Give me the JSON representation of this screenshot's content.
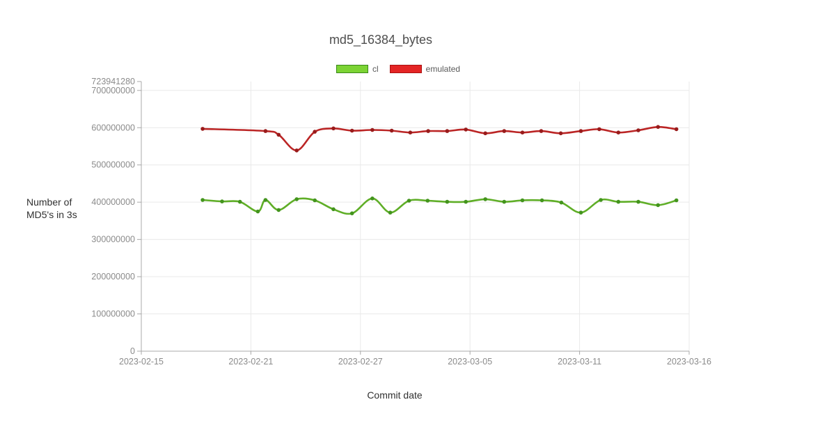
{
  "chart_data": {
    "type": "line",
    "title": "md5_16384_bytes",
    "xlabel": "Commit date",
    "ylabel": "Number of MD5's in 3s",
    "ylabel_lines": [
      "Number of",
      "MD5's in 3s"
    ],
    "x_epoch": "2023-02-15",
    "x_unit_days_after_epoch": true,
    "ylim": [
      0,
      723941280
    ],
    "grid": true,
    "legend_position": "top",
    "colors": {
      "grid": "#e9e9e9",
      "axis": "#a8a8a8",
      "tick_label": "#8b8b8b",
      "title": "#4e4e4e",
      "axis_title": "#303030"
    },
    "y_ticks": [
      0,
      100000000,
      200000000,
      300000000,
      400000000,
      500000000,
      600000000,
      700000000,
      723941280
    ],
    "x_ticks": [
      {
        "label": "2023-02-15",
        "day": 0
      },
      {
        "label": "2023-02-21",
        "day": 6
      },
      {
        "label": "2023-02-27",
        "day": 12
      },
      {
        "label": "2023-03-05",
        "day": 18
      },
      {
        "label": "2023-03-11",
        "day": 24
      },
      {
        "label": "2023-03-16",
        "day": 29
      }
    ],
    "series": [
      {
        "name": "cl",
        "color": "#5fae27",
        "marker_color": "#43941d",
        "legend_fill": "#7cd334",
        "legend_border": "#39871a",
        "points": [
          [
            3.36,
            406000000
          ],
          [
            4.42,
            402000000
          ],
          [
            5.4,
            401000000
          ],
          [
            6.38,
            375000000
          ],
          [
            6.8,
            406000000
          ],
          [
            7.52,
            379000000
          ],
          [
            8.51,
            408000000
          ],
          [
            9.5,
            405000000
          ],
          [
            10.52,
            381000000
          ],
          [
            11.54,
            370000000
          ],
          [
            12.65,
            410000000
          ],
          [
            13.63,
            372000000
          ],
          [
            14.66,
            404000000
          ],
          [
            15.68,
            404000000
          ],
          [
            16.75,
            401000000
          ],
          [
            17.77,
            401000000
          ],
          [
            18.84,
            408000000
          ],
          [
            19.87,
            401000000
          ],
          [
            20.87,
            405000000
          ],
          [
            21.94,
            405000000
          ],
          [
            23.0,
            399000000
          ],
          [
            24.06,
            372000000
          ],
          [
            24.97,
            406000000
          ],
          [
            25.77,
            401000000
          ],
          [
            26.68,
            401000000
          ],
          [
            27.58,
            392000000
          ],
          [
            28.42,
            405000000
          ]
        ]
      },
      {
        "name": "emulated",
        "color": "#bb2525",
        "marker_color": "#991b1b",
        "legend_fill": "#e42525",
        "legend_border": "#aa1111",
        "points": [
          [
            3.36,
            597000000
          ],
          [
            6.8,
            591000000
          ],
          [
            7.52,
            581000000
          ],
          [
            8.51,
            539000000
          ],
          [
            9.5,
            589000000
          ],
          [
            10.52,
            598000000
          ],
          [
            11.54,
            592000000
          ],
          [
            12.65,
            594000000
          ],
          [
            13.71,
            592000000
          ],
          [
            14.73,
            587000000
          ],
          [
            15.71,
            591000000
          ],
          [
            16.75,
            591000000
          ],
          [
            17.77,
            595000000
          ],
          [
            18.84,
            585000000
          ],
          [
            19.87,
            591000000
          ],
          [
            20.87,
            587000000
          ],
          [
            21.9,
            591000000
          ],
          [
            22.97,
            585000000
          ],
          [
            24.06,
            591000000
          ],
          [
            24.9,
            596000000
          ],
          [
            25.77,
            587000000
          ],
          [
            26.68,
            593000000
          ],
          [
            27.58,
            602000000
          ],
          [
            28.42,
            596000000
          ]
        ]
      }
    ]
  }
}
